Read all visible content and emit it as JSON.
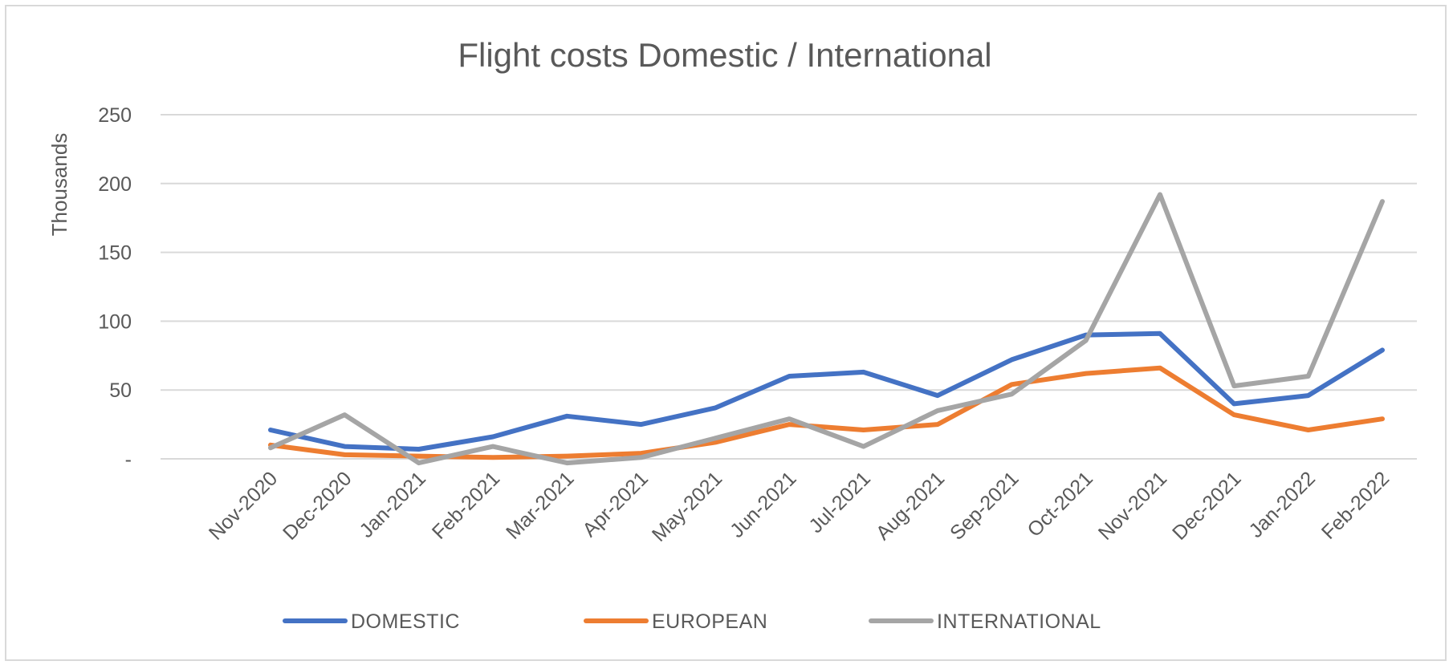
{
  "chart_data": {
    "type": "line",
    "title": "Flight costs Domestic / International",
    "ylabel": "Thousands",
    "xlabel": "",
    "ylim": [
      0,
      250
    ],
    "yticks": [
      {
        "value": 0,
        "label": "-"
      },
      {
        "value": 50,
        "label": "50"
      },
      {
        "value": 100,
        "label": "100"
      },
      {
        "value": 150,
        "label": "150"
      },
      {
        "value": 200,
        "label": "200"
      },
      {
        "value": 250,
        "label": "250"
      }
    ],
    "grid": true,
    "legend_position": "bottom",
    "categories": [
      "Nov-2020",
      "Dec-2020",
      "Jan-2021",
      "Feb-2021",
      "Mar-2021",
      "Apr-2021",
      "May-2021",
      "Jun-2021",
      "Jul-2021",
      "Aug-2021",
      "Sep-2021",
      "Oct-2021",
      "Nov-2021",
      "Dec-2021",
      "Jan-2022",
      "Feb-2022"
    ],
    "series": [
      {
        "name": "DOMESTIC",
        "color": "#4472c4",
        "values": [
          21,
          9,
          7,
          16,
          31,
          25,
          37,
          60,
          63,
          46,
          72,
          90,
          91,
          40,
          46,
          79
        ]
      },
      {
        "name": "EUROPEAN",
        "color": "#ed7d31",
        "values": [
          10,
          3,
          2,
          1,
          2,
          4,
          12,
          25,
          21,
          25,
          54,
          62,
          66,
          32,
          21,
          29
        ]
      },
      {
        "name": "INTERNATIONAL",
        "color": "#a5a5a5",
        "values": [
          8,
          32,
          -3,
          9,
          -3,
          1,
          15,
          29,
          9,
          35,
          47,
          86,
          192,
          53,
          60,
          187
        ]
      }
    ]
  }
}
